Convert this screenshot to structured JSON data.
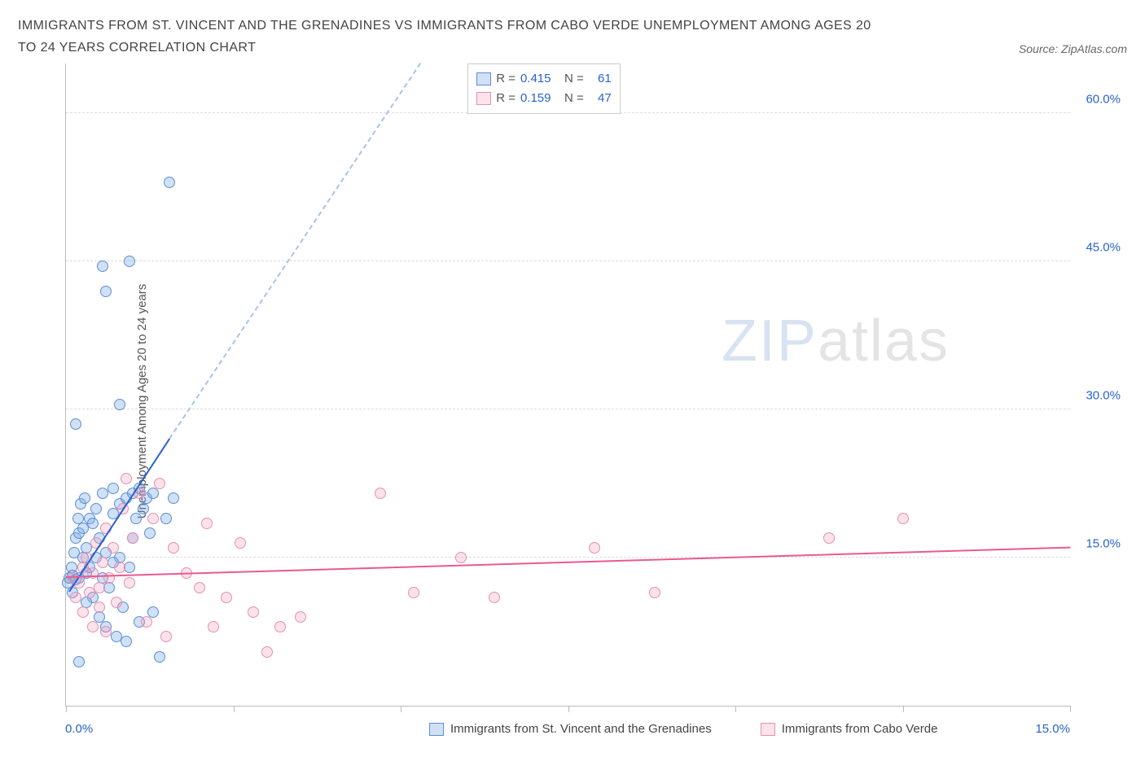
{
  "title": "IMMIGRANTS FROM ST. VINCENT AND THE GRENADINES VS IMMIGRANTS FROM CABO VERDE UNEMPLOYMENT AMONG AGES 20 TO 24 YEARS CORRELATION CHART",
  "source": "Source: ZipAtlas.com",
  "y_axis_label": "Unemployment Among Ages 20 to 24 years",
  "watermark": {
    "zip": "ZIP",
    "atlas": "atlas"
  },
  "chart": {
    "type": "scatter",
    "xlim": [
      0,
      15.0
    ],
    "ylim": [
      0,
      65.0
    ],
    "x_ticks": [
      0,
      2.5,
      5,
      7.5,
      10,
      12.5,
      15
    ],
    "x_tick_labels": {
      "0": "0.0%",
      "15": "15.0%"
    },
    "y_gridlines": [
      15,
      30,
      45,
      60
    ],
    "y_tick_labels": {
      "15": "15.0%",
      "30": "30.0%",
      "45": "45.0%",
      "60": "60.0%"
    },
    "x_label_color": "#2962cc",
    "y_label_color": "#2962cc",
    "grid_color": "#dddddd",
    "axis_color": "#bbbbbb",
    "background_color": "#ffffff"
  },
  "series": [
    {
      "name": "Immigrants from St. Vincent and the Grenadines",
      "marker_fill": "rgba(120,170,230,0.35)",
      "marker_stroke": "#5a8fd6",
      "marker_size": 14,
      "trend_color": "#2962cc",
      "trend_dash_color": "#a8c4e8",
      "trend": {
        "x1": 0.05,
        "y1": 11.5,
        "x2": 1.55,
        "y2": 27.0
      },
      "trend_dash": {
        "x1": 1.55,
        "y1": 27.0,
        "x2": 5.3,
        "y2": 65.0
      },
      "R": "0.415",
      "N": "61",
      "points": [
        [
          0.03,
          12.5
        ],
        [
          0.05,
          13.0
        ],
        [
          0.08,
          14.0
        ],
        [
          0.1,
          13.2
        ],
        [
          0.1,
          11.5
        ],
        [
          0.12,
          15.5
        ],
        [
          0.15,
          12.8
        ],
        [
          0.15,
          17.0
        ],
        [
          0.18,
          19.0
        ],
        [
          0.2,
          13.0
        ],
        [
          0.2,
          17.5
        ],
        [
          0.22,
          20.5
        ],
        [
          0.25,
          15.0
        ],
        [
          0.25,
          18.0
        ],
        [
          0.28,
          21.0
        ],
        [
          0.3,
          13.5
        ],
        [
          0.3,
          16.0
        ],
        [
          0.35,
          19.0
        ],
        [
          0.35,
          14.0
        ],
        [
          0.4,
          11.0
        ],
        [
          0.4,
          18.5
        ],
        [
          0.45,
          15.0
        ],
        [
          0.45,
          20.0
        ],
        [
          0.5,
          17.0
        ],
        [
          0.5,
          9.0
        ],
        [
          0.55,
          13.0
        ],
        [
          0.55,
          21.5
        ],
        [
          0.6,
          15.5
        ],
        [
          0.6,
          8.0
        ],
        [
          0.65,
          12.0
        ],
        [
          0.7,
          22.0
        ],
        [
          0.7,
          19.5
        ],
        [
          0.75,
          7.0
        ],
        [
          0.8,
          15.0
        ],
        [
          0.8,
          20.5
        ],
        [
          0.85,
          10.0
        ],
        [
          0.9,
          21.0
        ],
        [
          0.9,
          6.5
        ],
        [
          0.95,
          14.0
        ],
        [
          1.0,
          17.0
        ],
        [
          1.0,
          21.5
        ],
        [
          1.05,
          19.0
        ],
        [
          1.1,
          22.0
        ],
        [
          1.1,
          8.5
        ],
        [
          1.15,
          20.0
        ],
        [
          1.2,
          21.0
        ],
        [
          1.25,
          17.5
        ],
        [
          1.3,
          21.5
        ],
        [
          1.3,
          9.5
        ],
        [
          1.4,
          5.0
        ],
        [
          1.5,
          19.0
        ],
        [
          1.6,
          21.0
        ],
        [
          0.15,
          28.5
        ],
        [
          0.55,
          44.5
        ],
        [
          0.6,
          42.0
        ],
        [
          0.95,
          45.0
        ],
        [
          0.8,
          30.5
        ],
        [
          1.55,
          53.0
        ],
        [
          0.3,
          10.5
        ],
        [
          0.7,
          14.5
        ],
        [
          0.2,
          4.5
        ]
      ]
    },
    {
      "name": "Immigrants from Cabo Verde",
      "marker_fill": "rgba(245,160,190,0.30)",
      "marker_stroke": "#e78fb0",
      "marker_size": 14,
      "trend_color": "#e85a8f",
      "trend": {
        "x1": 0.0,
        "y1": 13.0,
        "x2": 15.0,
        "y2": 16.0
      },
      "R": "0.159",
      "N": "47",
      "points": [
        [
          0.1,
          13.0
        ],
        [
          0.15,
          11.0
        ],
        [
          0.2,
          12.5
        ],
        [
          0.25,
          14.0
        ],
        [
          0.25,
          9.5
        ],
        [
          0.3,
          15.0
        ],
        [
          0.35,
          11.5
        ],
        [
          0.4,
          13.5
        ],
        [
          0.4,
          8.0
        ],
        [
          0.45,
          16.5
        ],
        [
          0.5,
          12.0
        ],
        [
          0.5,
          10.0
        ],
        [
          0.55,
          14.5
        ],
        [
          0.6,
          18.0
        ],
        [
          0.6,
          7.5
        ],
        [
          0.65,
          13.0
        ],
        [
          0.7,
          16.0
        ],
        [
          0.75,
          10.5
        ],
        [
          0.8,
          14.0
        ],
        [
          0.85,
          20.0
        ],
        [
          0.9,
          23.0
        ],
        [
          0.95,
          12.5
        ],
        [
          1.0,
          17.0
        ],
        [
          1.1,
          21.5
        ],
        [
          1.2,
          8.5
        ],
        [
          1.3,
          19.0
        ],
        [
          1.4,
          22.5
        ],
        [
          1.6,
          16.0
        ],
        [
          1.8,
          13.5
        ],
        [
          2.0,
          12.0
        ],
        [
          2.1,
          18.5
        ],
        [
          2.2,
          8.0
        ],
        [
          2.4,
          11.0
        ],
        [
          2.6,
          16.5
        ],
        [
          2.8,
          9.5
        ],
        [
          3.0,
          5.5
        ],
        [
          3.2,
          8.0
        ],
        [
          3.5,
          9.0
        ],
        [
          4.7,
          21.5
        ],
        [
          5.2,
          11.5
        ],
        [
          5.9,
          15.0
        ],
        [
          6.4,
          11.0
        ],
        [
          7.9,
          16.0
        ],
        [
          8.8,
          11.5
        ],
        [
          11.4,
          17.0
        ],
        [
          12.5,
          19.0
        ],
        [
          1.5,
          7.0
        ]
      ]
    }
  ],
  "stats_box": {
    "r_label": "R =",
    "n_label": "N =",
    "value_color": "#2962cc"
  },
  "bottom_legend": {
    "series1": "Immigrants from St. Vincent and the Grenadines",
    "series2": "Immigrants from Cabo Verde"
  }
}
